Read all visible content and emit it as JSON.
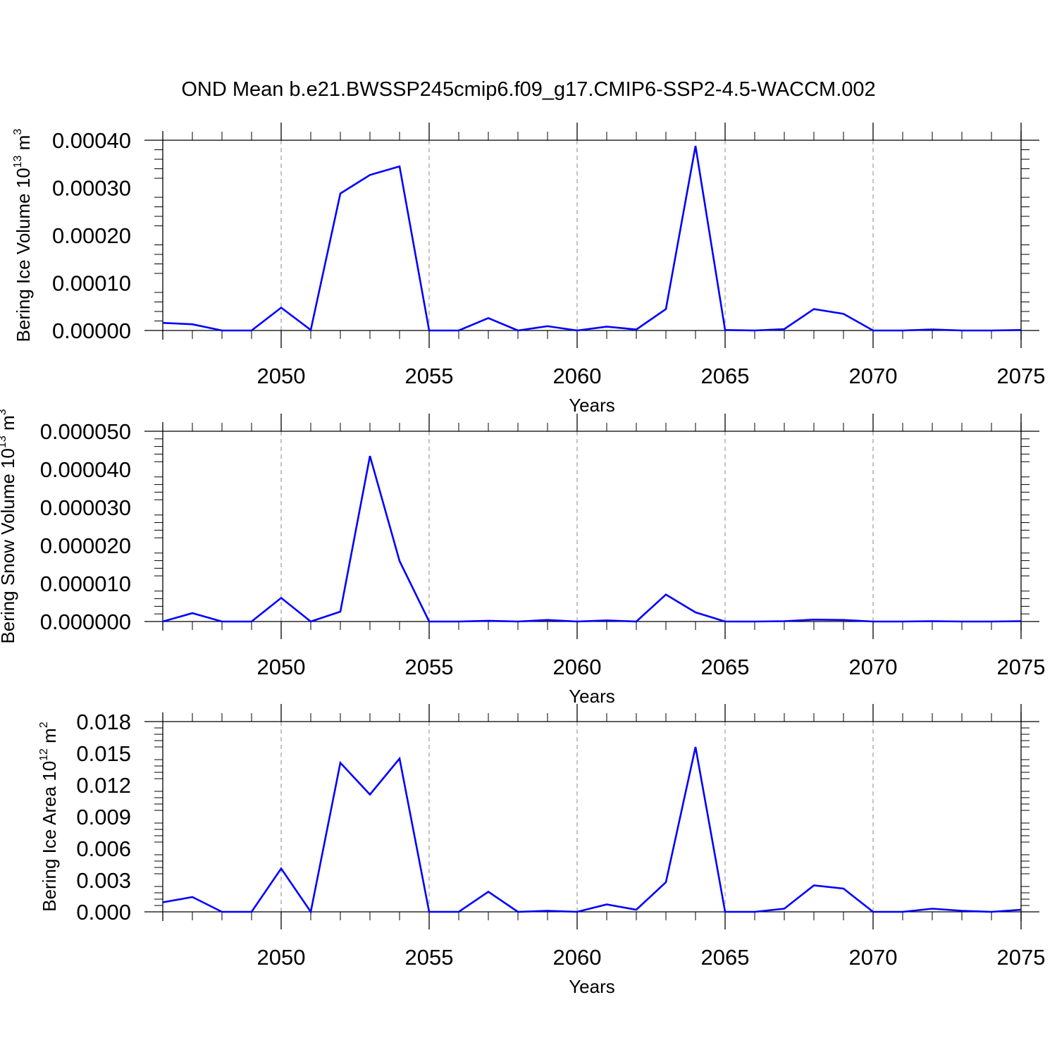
{
  "title": "OND Mean b.e21.BWSSP245cmip6.f09_g17.CMIP6-SSP2-4.5-WACCM.002",
  "colors": {
    "line": "#0000ff",
    "axis": "#000000",
    "grid": "#888888"
  },
  "chart_data": [
    {
      "type": "line",
      "ylabel": {
        "text": "Bering Ice Volume 10",
        "exponent": "13",
        "unit": "m",
        "unit_exponent": "3"
      },
      "xlabel": "Years",
      "xlim": [
        2046,
        2075
      ],
      "xticks": [
        2050,
        2055,
        2060,
        2065,
        2070,
        2075
      ],
      "xtick_labels": [
        "2050",
        "2055",
        "2060",
        "2065",
        "2070",
        "2075"
      ],
      "ylim": [
        0,
        0.0004
      ],
      "yticks": [
        0,
        0.0001,
        0.0002,
        0.0003,
        0.0004
      ],
      "ytick_labels": [
        "0.00000",
        "0.00010",
        "0.00020",
        "0.00030",
        "0.00040"
      ],
      "grid": "vertical dashed at major x ticks",
      "x": [
        2046,
        2047,
        2048,
        2049,
        2050,
        2051,
        2052,
        2053,
        2054,
        2055,
        2056,
        2057,
        2058,
        2059,
        2060,
        2061,
        2062,
        2063,
        2064,
        2065,
        2066,
        2067,
        2068,
        2069,
        2070,
        2071,
        2072,
        2073,
        2074,
        2075
      ],
      "values": [
        1.6e-05,
        1.3e-05,
        0.0,
        0.0,
        4.8e-05,
        1e-06,
        0.000288,
        0.000327,
        0.000345,
        0.0,
        0.0,
        2.6e-05,
        0.0,
        9e-06,
        0.0,
        8e-06,
        2e-06,
        4.5e-05,
        0.000388,
        1e-06,
        0.0,
        3e-06,
        4.5e-05,
        3.5e-05,
        0.0,
        0.0,
        2e-06,
        0.0,
        0.0,
        1e-06
      ]
    },
    {
      "type": "line",
      "ylabel": {
        "text": "Bering Snow Volume 10",
        "exponent": "13",
        "unit": "m",
        "unit_exponent": "3"
      },
      "xlabel": "Years",
      "xlim": [
        2046,
        2075
      ],
      "xticks": [
        2050,
        2055,
        2060,
        2065,
        2070,
        2075
      ],
      "xtick_labels": [
        "2050",
        "2055",
        "2060",
        "2065",
        "2070",
        "2075"
      ],
      "ylim": [
        0,
        5e-05
      ],
      "yticks": [
        0,
        1e-05,
        2e-05,
        3e-05,
        4e-05,
        5e-05
      ],
      "ytick_labels": [
        "0.000000",
        "0.000010",
        "0.000020",
        "0.000030",
        "0.000040",
        "0.000050"
      ],
      "grid": "vertical dashed at major x ticks",
      "x": [
        2046,
        2047,
        2048,
        2049,
        2050,
        2051,
        2052,
        2053,
        2054,
        2055,
        2056,
        2057,
        2058,
        2059,
        2060,
        2061,
        2062,
        2063,
        2064,
        2065,
        2066,
        2067,
        2068,
        2069,
        2070,
        2071,
        2072,
        2073,
        2074,
        2075
      ],
      "values": [
        0.0,
        2.2e-06,
        0.0,
        0.0,
        6.2e-06,
        0.0,
        2.6e-06,
        4.35e-05,
        1.59e-05,
        0.0,
        0.0,
        2e-07,
        0.0,
        4e-07,
        0.0,
        3e-07,
        0.0,
        7.1e-06,
        2.4e-06,
        0.0,
        0.0,
        1e-07,
        5e-07,
        4e-07,
        0.0,
        0.0,
        1e-07,
        0.0,
        0.0,
        1e-07
      ]
    },
    {
      "type": "line",
      "ylabel": {
        "text": "Bering Ice Area 10",
        "exponent": "12",
        "unit": "m",
        "unit_exponent": "2"
      },
      "xlabel": "Years",
      "xlim": [
        2046,
        2075
      ],
      "xticks": [
        2050,
        2055,
        2060,
        2065,
        2070,
        2075
      ],
      "xtick_labels": [
        "2050",
        "2055",
        "2060",
        "2065",
        "2070",
        "2075"
      ],
      "ylim": [
        0,
        0.018
      ],
      "yticks": [
        0,
        0.003,
        0.006,
        0.009,
        0.012,
        0.015,
        0.018
      ],
      "ytick_labels": [
        "0.000",
        "0.003",
        "0.006",
        "0.009",
        "0.012",
        "0.015",
        "0.018"
      ],
      "grid": "vertical dashed at major x ticks",
      "x": [
        2046,
        2047,
        2048,
        2049,
        2050,
        2051,
        2052,
        2053,
        2054,
        2055,
        2056,
        2057,
        2058,
        2059,
        2060,
        2061,
        2062,
        2063,
        2064,
        2065,
        2066,
        2067,
        2068,
        2069,
        2070,
        2071,
        2072,
        2073,
        2074,
        2075
      ],
      "values": [
        0.0009,
        0.0014,
        0.0,
        0.0,
        0.0041,
        0.0,
        0.0141,
        0.0111,
        0.0145,
        0.0,
        0.0,
        0.0019,
        0.0,
        0.0001,
        0.0,
        0.0007,
        0.0002,
        0.0028,
        0.0156,
        0.0,
        0.0,
        0.0003,
        0.0025,
        0.0022,
        0.0,
        0.0,
        0.0003,
        0.0001,
        0.0,
        0.0002
      ]
    }
  ]
}
